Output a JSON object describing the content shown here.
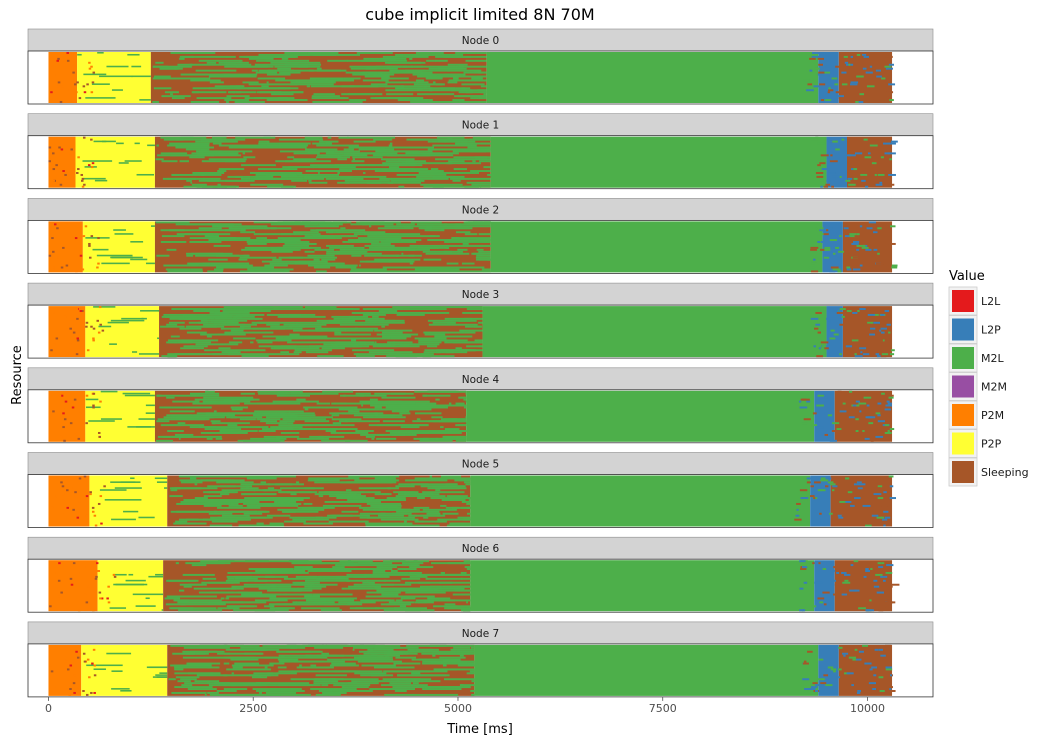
{
  "chart_data": {
    "type": "gantt",
    "title": "cube implicit limited 8N 70M",
    "xlabel": "Time [ms]",
    "ylabel": "Resource",
    "xlim": [
      -250,
      10800
    ],
    "xticks": [
      0,
      2500,
      5000,
      7500,
      10000
    ],
    "xtick_labels": [
      "0",
      "2500",
      "5000",
      "7500",
      "10000"
    ],
    "legend": {
      "title": "Value",
      "position": "right",
      "entries": [
        {
          "name": "L2L",
          "color": "#e41a1c"
        },
        {
          "name": "L2P",
          "color": "#377eb8"
        },
        {
          "name": "M2L",
          "color": "#4daf4a"
        },
        {
          "name": "M2M",
          "color": "#984ea3"
        },
        {
          "name": "P2M",
          "color": "#ff7f00"
        },
        {
          "name": "P2P",
          "color": "#ffff33"
        },
        {
          "name": "Sleeping",
          "color": "#a65628"
        }
      ]
    },
    "panels": [
      {
        "label": "Node 0",
        "start": 0,
        "end": 10300,
        "segments": [
          {
            "state": "P2M",
            "start": 0,
            "end": 350
          },
          {
            "state": "P2P",
            "start": 350,
            "end": 1250
          },
          {
            "state": "Sleeping",
            "start": 1250,
            "end": 5350
          },
          {
            "state": "M2L",
            "start": 5350,
            "end": 9400
          },
          {
            "state": "L2P",
            "start": 9400,
            "end": 9650
          },
          {
            "state": "Sleeping",
            "start": 9650,
            "end": 10300
          }
        ]
      },
      {
        "label": "Node 1",
        "start": 0,
        "end": 10300,
        "segments": [
          {
            "state": "P2M",
            "start": 0,
            "end": 330
          },
          {
            "state": "P2P",
            "start": 330,
            "end": 1300
          },
          {
            "state": "Sleeping",
            "start": 1300,
            "end": 5400
          },
          {
            "state": "M2L",
            "start": 5400,
            "end": 9500
          },
          {
            "state": "L2P",
            "start": 9500,
            "end": 9750
          },
          {
            "state": "Sleeping",
            "start": 9750,
            "end": 10300
          }
        ]
      },
      {
        "label": "Node 2",
        "start": 0,
        "end": 10300,
        "segments": [
          {
            "state": "P2M",
            "start": 0,
            "end": 420
          },
          {
            "state": "P2P",
            "start": 420,
            "end": 1300
          },
          {
            "state": "Sleeping",
            "start": 1300,
            "end": 5400
          },
          {
            "state": "M2L",
            "start": 5400,
            "end": 9450
          },
          {
            "state": "L2P",
            "start": 9450,
            "end": 9700
          },
          {
            "state": "Sleeping",
            "start": 9700,
            "end": 10300
          }
        ]
      },
      {
        "label": "Node 3",
        "start": 0,
        "end": 10300,
        "segments": [
          {
            "state": "P2M",
            "start": 0,
            "end": 450
          },
          {
            "state": "P2P",
            "start": 450,
            "end": 1350
          },
          {
            "state": "Sleeping",
            "start": 1350,
            "end": 5300
          },
          {
            "state": "M2L",
            "start": 5300,
            "end": 9500
          },
          {
            "state": "L2P",
            "start": 9500,
            "end": 9700
          },
          {
            "state": "Sleeping",
            "start": 9700,
            "end": 10300
          }
        ]
      },
      {
        "label": "Node 4",
        "start": 0,
        "end": 10300,
        "segments": [
          {
            "state": "P2M",
            "start": 0,
            "end": 450
          },
          {
            "state": "P2P",
            "start": 450,
            "end": 1300
          },
          {
            "state": "Sleeping",
            "start": 1300,
            "end": 5100
          },
          {
            "state": "M2L",
            "start": 5100,
            "end": 9350
          },
          {
            "state": "L2P",
            "start": 9350,
            "end": 9600
          },
          {
            "state": "Sleeping",
            "start": 9600,
            "end": 10300
          }
        ]
      },
      {
        "label": "Node 5",
        "start": 0,
        "end": 10300,
        "segments": [
          {
            "state": "P2M",
            "start": 0,
            "end": 500
          },
          {
            "state": "P2P",
            "start": 500,
            "end": 1450
          },
          {
            "state": "Sleeping",
            "start": 1450,
            "end": 5150
          },
          {
            "state": "M2L",
            "start": 5150,
            "end": 9300
          },
          {
            "state": "L2P",
            "start": 9300,
            "end": 9550
          },
          {
            "state": "Sleeping",
            "start": 9550,
            "end": 10300
          }
        ]
      },
      {
        "label": "Node 6",
        "start": 0,
        "end": 10300,
        "segments": [
          {
            "state": "P2M",
            "start": 0,
            "end": 600
          },
          {
            "state": "P2P",
            "start": 600,
            "end": 1400
          },
          {
            "state": "Sleeping",
            "start": 1400,
            "end": 5150
          },
          {
            "state": "M2L",
            "start": 5150,
            "end": 9350
          },
          {
            "state": "L2P",
            "start": 9350,
            "end": 9600
          },
          {
            "state": "Sleeping",
            "start": 9600,
            "end": 10300
          }
        ]
      },
      {
        "label": "Node 7",
        "start": 0,
        "end": 10300,
        "segments": [
          {
            "state": "P2M",
            "start": 0,
            "end": 400
          },
          {
            "state": "P2P",
            "start": 400,
            "end": 1450
          },
          {
            "state": "Sleeping",
            "start": 1450,
            "end": 5200
          },
          {
            "state": "M2L",
            "start": 5200,
            "end": 9400
          },
          {
            "state": "L2P",
            "start": 9400,
            "end": 9650
          },
          {
            "state": "Sleeping",
            "start": 9650,
            "end": 10300
          }
        ]
      }
    ]
  }
}
